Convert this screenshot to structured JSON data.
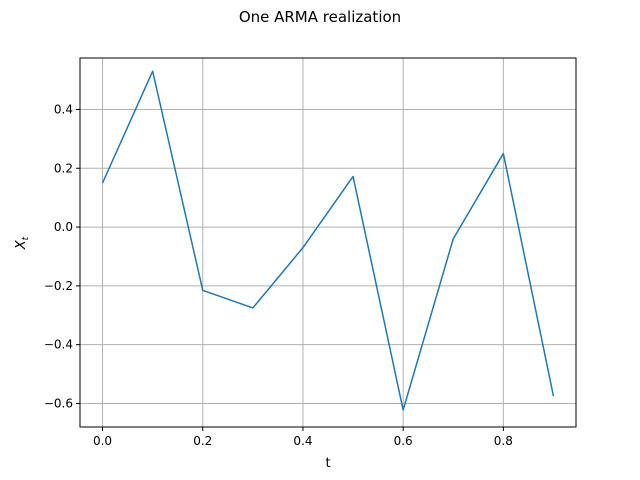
{
  "chart_data": {
    "type": "line",
    "title": "One ARMA realization",
    "xlabel": "t",
    "ylabel": "X",
    "ylabel_subscript": "t",
    "xlim": [
      -0.045,
      0.945
    ],
    "ylim": [
      -0.68,
      0.575
    ],
    "xticks": [
      0.0,
      0.2,
      0.4,
      0.6,
      0.8
    ],
    "xtick_labels": [
      "0.0",
      "0.2",
      "0.4",
      "0.6",
      "0.8"
    ],
    "yticks": [
      -0.6,
      -0.4,
      -0.2,
      0.0,
      0.2,
      0.4
    ],
    "ytick_labels": [
      "−0.6",
      "−0.4",
      "−0.2",
      "0.0",
      "0.2",
      "0.4"
    ],
    "grid": true,
    "series": [
      {
        "color": "#1f77b4",
        "x": [
          0.0,
          0.1,
          0.2,
          0.3,
          0.4,
          0.5,
          0.6,
          0.7,
          0.8,
          0.9
        ],
        "y": [
          0.15,
          0.53,
          -0.215,
          -0.275,
          -0.07,
          0.172,
          -0.622,
          -0.04,
          0.25,
          -0.575
        ]
      }
    ]
  }
}
